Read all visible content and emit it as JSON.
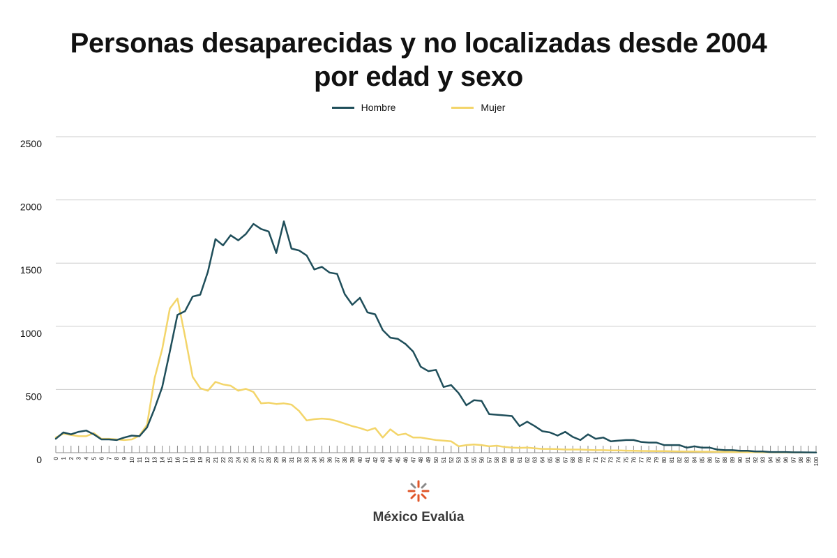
{
  "title_line1": "Personas desaparecidas y no localizadas desde 2004",
  "title_line2": "por edad y sexo",
  "logo_text": "México Evalúa",
  "colors": {
    "hombre": "#1f4e5a",
    "mujer": "#f3d56a",
    "grid": "#cccccc",
    "axis": "#8a8a8a"
  },
  "chart_data": {
    "type": "line",
    "title": "Personas desaparecidas y no localizadas desde 2004 por edad y sexo",
    "xlabel": "",
    "ylabel": "",
    "x": [
      0,
      1,
      2,
      3,
      4,
      5,
      6,
      7,
      8,
      9,
      10,
      11,
      12,
      13,
      14,
      15,
      16,
      17,
      18,
      19,
      20,
      21,
      22,
      23,
      24,
      25,
      26,
      27,
      28,
      29,
      30,
      31,
      32,
      33,
      34,
      35,
      36,
      37,
      38,
      39,
      40,
      41,
      42,
      43,
      44,
      45,
      46,
      47,
      48,
      49,
      50,
      51,
      52,
      53,
      54,
      55,
      56,
      57,
      58,
      59,
      60,
      61,
      62,
      63,
      64,
      65,
      66,
      67,
      68,
      69,
      70,
      71,
      72,
      73,
      74,
      75,
      76,
      77,
      78,
      79,
      80,
      81,
      82,
      83,
      84,
      85,
      86,
      87,
      88,
      89,
      90,
      91,
      92,
      93,
      94,
      95,
      96,
      97,
      98,
      99,
      100
    ],
    "xticks": [
      "0",
      "1",
      "2",
      "3",
      "4",
      "5",
      "6",
      "7",
      "8",
      "9",
      "10",
      "11",
      "12",
      "13",
      "14",
      "15",
      "16",
      "17",
      "18",
      "19",
      "20",
      "21",
      "22",
      "23",
      "24",
      "25",
      "26",
      "27",
      "28",
      "29",
      "30",
      "31",
      "32",
      "33",
      "34",
      "35",
      "36",
      "37",
      "38",
      "39",
      "40",
      "41",
      "42",
      "43",
      "44",
      "45",
      "46",
      "47",
      "48",
      "49",
      "50",
      "51",
      "52",
      "53",
      "54",
      "55",
      "56",
      "57",
      "58",
      "59",
      "60",
      "61",
      "62",
      "63",
      "64",
      "65",
      "66",
      "67",
      "68",
      "69",
      "70",
      "71",
      "72",
      "73",
      "74",
      "75",
      "76",
      "77",
      "78",
      "79",
      "80",
      "81",
      "82",
      "83",
      "84",
      "85",
      "86",
      "87",
      "88",
      "89",
      "90",
      "91",
      "92",
      "93",
      "94",
      "95",
      "96",
      "97",
      "98",
      "99",
      "100"
    ],
    "yticks": [
      "0",
      "500",
      "1000",
      "1500",
      "2000",
      "2500"
    ],
    "ylim": [
      0,
      2500
    ],
    "grid": true,
    "legend_position": "top-center",
    "series": [
      {
        "name": "Hombre",
        "values": [
          110,
          160,
          145,
          165,
          175,
          145,
          105,
          105,
          100,
          120,
          135,
          130,
          200,
          350,
          520,
          800,
          1090,
          1120,
          1235,
          1250,
          1430,
          1690,
          1640,
          1720,
          1680,
          1730,
          1810,
          1770,
          1750,
          1580,
          1830,
          1615,
          1600,
          1560,
          1450,
          1470,
          1425,
          1415,
          1255,
          1170,
          1225,
          1110,
          1095,
          970,
          910,
          900,
          860,
          800,
          680,
          645,
          655,
          520,
          535,
          470,
          375,
          415,
          410,
          305,
          300,
          295,
          290,
          210,
          245,
          210,
          170,
          160,
          135,
          165,
          125,
          100,
          145,
          110,
          120,
          90,
          95,
          100,
          100,
          85,
          80,
          80,
          60,
          60,
          60,
          40,
          50,
          40,
          40,
          25,
          20,
          20,
          15,
          15,
          10,
          10,
          5,
          5,
          5,
          3,
          3,
          2,
          1
        ]
      },
      {
        "name": "Mujer",
        "values": [
          120,
          150,
          140,
          130,
          130,
          155,
          110,
          110,
          105,
          100,
          105,
          135,
          220,
          590,
          820,
          1140,
          1220,
          920,
          600,
          510,
          490,
          560,
          540,
          530,
          490,
          505,
          480,
          390,
          395,
          385,
          390,
          380,
          330,
          255,
          265,
          270,
          265,
          250,
          230,
          210,
          195,
          175,
          195,
          120,
          185,
          140,
          150,
          120,
          120,
          110,
          100,
          95,
          90,
          50,
          60,
          65,
          60,
          50,
          55,
          45,
          40,
          38,
          40,
          35,
          30,
          30,
          28,
          25,
          25,
          25,
          22,
          20,
          20,
          18,
          18,
          16,
          15,
          14,
          13,
          12,
          12,
          11,
          10,
          9,
          9,
          8,
          8,
          7,
          6,
          5,
          5,
          4,
          4,
          3,
          3,
          2,
          2,
          2,
          1,
          1,
          1
        ]
      }
    ]
  }
}
